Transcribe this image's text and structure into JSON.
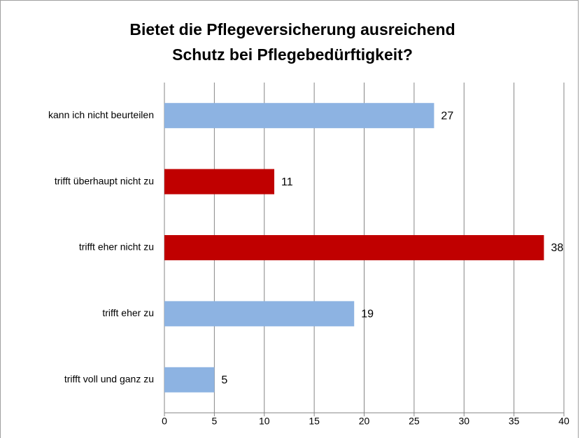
{
  "chart_data": {
    "type": "barh",
    "title": [
      "Bietet die Pflegeversicherung ausreichend",
      "Schutz bei Pflegebedürftigkeit?"
    ],
    "categories": [
      "kann ich nicht beurteilen",
      "trifft überhaupt nicht zu",
      "trifft eher nicht zu",
      "trifft eher zu",
      "trifft voll und ganz zu"
    ],
    "values": [
      27,
      11,
      38,
      19,
      5
    ],
    "colors": [
      "#8db3e2",
      "#c00000",
      "#c00000",
      "#8db3e2",
      "#8db3e2"
    ],
    "xlim": [
      0,
      40
    ],
    "xticks": [
      0,
      5,
      10,
      15,
      20,
      25,
      30,
      35,
      40
    ],
    "grid": true
  }
}
